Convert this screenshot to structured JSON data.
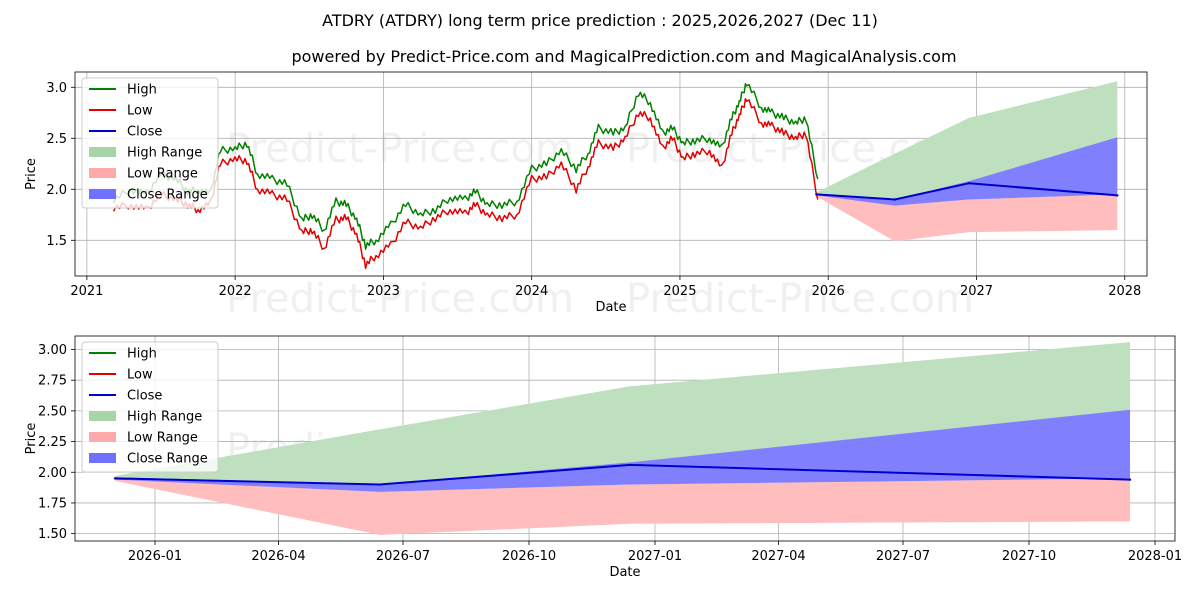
{
  "chart_data": [
    {
      "type": "line",
      "title": "ATDRY (ATDRY) long term price prediction : 2025,2026,2027 (Dec 11)",
      "subtitle": "powered by Predict-Price.com and MagicalPrediction.com and MagicalAnalysis.com",
      "xlabel": "Date",
      "ylabel": "Price",
      "xlim": [
        2020.92,
        2028.15
      ],
      "ylim": [
        1.15,
        3.15
      ],
      "xticks": [
        2021,
        2022,
        2023,
        2024,
        2025,
        2026,
        2027,
        2028
      ],
      "xtick_labels": [
        "2021",
        "2022",
        "2023",
        "2024",
        "2025",
        "2026",
        "2027",
        "2028"
      ],
      "yticks": [
        1.5,
        2.0,
        2.5,
        3.0
      ],
      "ytick_labels": [
        "1.5",
        "2.0",
        "2.5",
        "3.0"
      ],
      "grid": true,
      "legend_position": "top-left",
      "watermarks": [
        "Predict-Price.com",
        "Predict-Price.com",
        "Predict-Price.com",
        "Predict-Price.com"
      ],
      "legend": [
        {
          "label": "High",
          "kind": "line",
          "color": "#008000"
        },
        {
          "label": "Low",
          "kind": "line",
          "color": "#e00000"
        },
        {
          "label": "Close",
          "kind": "line",
          "color": "#0000cc"
        },
        {
          "label": "High Range",
          "kind": "patch",
          "color": "#a8d5a8"
        },
        {
          "label": "Low Range",
          "kind": "patch",
          "color": "#ffaaaa"
        },
        {
          "label": "Close Range",
          "kind": "patch",
          "color": "#7070ff"
        }
      ],
      "history_x": [
        2021.18,
        2021.3,
        2021.4,
        2021.5,
        2021.6,
        2021.68,
        2021.75,
        2021.83,
        2021.9,
        2022.0,
        2022.08,
        2022.15,
        2022.25,
        2022.35,
        2022.45,
        2022.52,
        2022.6,
        2022.68,
        2022.75,
        2022.82,
        2022.88,
        2022.95,
        2023.05,
        2023.15,
        2023.25,
        2023.35,
        2023.45,
        2023.55,
        2023.62,
        2023.7,
        2023.8,
        2023.9,
        2024.0,
        2024.1,
        2024.2,
        2024.3,
        2024.38,
        2024.45,
        2024.55,
        2024.63,
        2024.72,
        2024.8,
        2024.88,
        2024.95,
        2025.02,
        2025.1,
        2025.2,
        2025.28,
        2025.35,
        2025.4,
        2025.45,
        2025.55,
        2025.62,
        2025.7,
        2025.78,
        2025.85,
        2025.93
      ],
      "history_high": [
        1.9,
        2.0,
        1.95,
        2.15,
        2.1,
        1.98,
        2.0,
        1.95,
        2.38,
        2.4,
        2.45,
        2.15,
        2.1,
        2.05,
        1.7,
        1.75,
        1.6,
        1.88,
        1.85,
        1.7,
        1.45,
        1.5,
        1.65,
        1.85,
        1.75,
        1.8,
        1.92,
        1.9,
        1.98,
        1.85,
        1.85,
        1.88,
        2.2,
        2.25,
        2.38,
        2.2,
        2.35,
        2.6,
        2.55,
        2.6,
        2.95,
        2.85,
        2.55,
        2.6,
        2.45,
        2.48,
        2.5,
        2.4,
        2.7,
        2.85,
        3.05,
        2.8,
        2.75,
        2.7,
        2.65,
        2.7,
        2.1
      ],
      "history_low": [
        1.82,
        1.85,
        1.8,
        1.95,
        1.9,
        1.85,
        1.8,
        1.85,
        2.25,
        2.3,
        2.28,
        2.0,
        1.95,
        1.9,
        1.58,
        1.6,
        1.42,
        1.7,
        1.72,
        1.55,
        1.26,
        1.35,
        1.45,
        1.68,
        1.62,
        1.72,
        1.8,
        1.76,
        1.85,
        1.75,
        1.72,
        1.75,
        2.1,
        2.12,
        2.25,
        2.0,
        2.22,
        2.45,
        2.4,
        2.5,
        2.75,
        2.7,
        2.4,
        2.5,
        2.3,
        2.35,
        2.38,
        2.2,
        2.55,
        2.72,
        2.9,
        2.65,
        2.62,
        2.55,
        2.5,
        2.55,
        1.9
      ],
      "forecast": {
        "x": [
          2025.92,
          2026.45,
          2026.95,
          2027.95
        ],
        "close": [
          1.95,
          1.9,
          2.06,
          1.94
        ],
        "high_range_upper": [
          1.97,
          2.35,
          2.7,
          3.06
        ],
        "high_range_lower": [
          1.95,
          1.9,
          2.06,
          1.94
        ],
        "close_range_upper": [
          1.96,
          1.9,
          2.08,
          2.51
        ],
        "close_range_lower": [
          1.94,
          1.84,
          1.9,
          1.95
        ],
        "low_range_upper": [
          1.95,
          1.84,
          1.9,
          1.95
        ],
        "low_range_lower": [
          1.93,
          1.49,
          1.58,
          1.6
        ]
      }
    },
    {
      "type": "area",
      "title": "",
      "xlabel": "Date",
      "ylabel": "Price",
      "xlim": [
        2025.84,
        2028.04
      ],
      "ylim": [
        1.44,
        3.11
      ],
      "xticks": [
        2026.0,
        2026.247,
        2026.496,
        2026.748,
        2027.0,
        2027.247,
        2027.496,
        2027.748,
        2028.0
      ],
      "xtick_labels": [
        "2026-01",
        "2026-04",
        "2026-07",
        "2026-10",
        "2027-01",
        "2027-04",
        "2027-07",
        "2027-10",
        "2028-01"
      ],
      "yticks": [
        1.5,
        1.75,
        2.0,
        2.25,
        2.5,
        2.75,
        3.0
      ],
      "ytick_labels": [
        "1.50",
        "1.75",
        "2.00",
        "2.25",
        "2.50",
        "2.75",
        "3.00"
      ],
      "grid": true,
      "legend_position": "top-left",
      "watermarks": [
        "Predict-Price.com",
        "Predict-Price.com"
      ],
      "legend": [
        {
          "label": "High",
          "kind": "line",
          "color": "#008000"
        },
        {
          "label": "Low",
          "kind": "line",
          "color": "#e00000"
        },
        {
          "label": "Close",
          "kind": "line",
          "color": "#0000cc"
        },
        {
          "label": "High Range",
          "kind": "patch",
          "color": "#a8d5a8"
        },
        {
          "label": "Low Range",
          "kind": "patch",
          "color": "#ffaaaa"
        },
        {
          "label": "Close Range",
          "kind": "patch",
          "color": "#7070ff"
        }
      ],
      "forecast": {
        "x": [
          2025.92,
          2026.45,
          2026.95,
          2027.95
        ],
        "close": [
          1.95,
          1.9,
          2.06,
          1.94
        ],
        "high_range_upper": [
          1.97,
          2.35,
          2.7,
          3.06
        ],
        "high_range_lower": [
          1.95,
          1.9,
          2.06,
          1.94
        ],
        "close_range_upper": [
          1.96,
          1.9,
          2.08,
          2.51
        ],
        "close_range_lower": [
          1.94,
          1.84,
          1.9,
          1.95
        ],
        "low_range_upper": [
          1.95,
          1.84,
          1.9,
          1.95
        ],
        "low_range_lower": [
          1.93,
          1.49,
          1.58,
          1.6
        ]
      }
    }
  ]
}
